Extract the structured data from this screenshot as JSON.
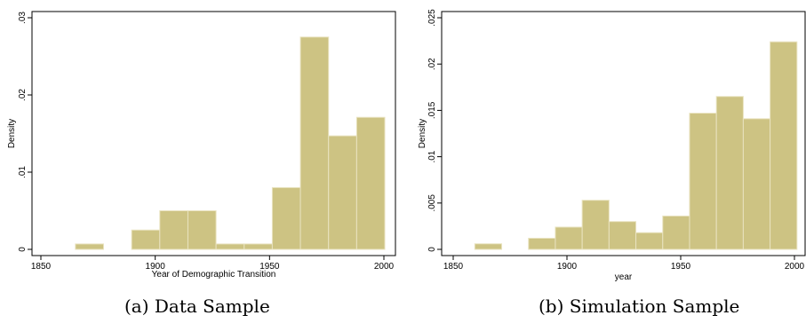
{
  "captions": {
    "left": "(a)  Data Sample",
    "right": "(b)  Simulation Sample"
  },
  "colors": {
    "bar_fill": "#cdc383",
    "bar_stroke": "#e9e3c0",
    "axis": "#000000",
    "background": "#ffffff"
  },
  "chart_data": [
    {
      "type": "bar",
      "subtype": "histogram",
      "xlabel": "Year of Demographic Transition",
      "ylabel": "Density",
      "xlim": [
        1850,
        2000
      ],
      "ylim": [
        0,
        0.03
      ],
      "xticks": [
        "1850",
        "1900",
        "1950",
        "2000"
      ],
      "yticks": [
        "0",
        ".01",
        ".02",
        ".03"
      ],
      "bin_width": 12.3,
      "bins": [
        {
          "x0": 1865.1,
          "density": 0.0007
        },
        {
          "x0": 1889.7,
          "density": 0.0025
        },
        {
          "x0": 1902.0,
          "density": 0.005
        },
        {
          "x0": 1914.3,
          "density": 0.005
        },
        {
          "x0": 1926.6,
          "density": 0.0007
        },
        {
          "x0": 1938.9,
          "density": 0.0007
        },
        {
          "x0": 1951.2,
          "density": 0.008
        },
        {
          "x0": 1963.5,
          "density": 0.0275
        },
        {
          "x0": 1975.8,
          "density": 0.0147
        },
        {
          "x0": 1988.1,
          "density": 0.0171
        }
      ],
      "grid": false,
      "legend": "none"
    },
    {
      "type": "bar",
      "subtype": "histogram",
      "xlabel": "year",
      "ylabel": "Density",
      "xlim": [
        1850,
        2000
      ],
      "ylim": [
        0,
        0.025
      ],
      "xticks": [
        "1850",
        "1900",
        "1950",
        "2000"
      ],
      "yticks": [
        "0",
        ".005",
        ".01",
        ".015",
        ".02",
        ".025"
      ],
      "bin_width": 11.8,
      "bins": [
        {
          "x0": 1859.5,
          "density": 0.0006
        },
        {
          "x0": 1883.1,
          "density": 0.0012
        },
        {
          "x0": 1894.9,
          "density": 0.0024
        },
        {
          "x0": 1906.7,
          "density": 0.0053
        },
        {
          "x0": 1918.5,
          "density": 0.003
        },
        {
          "x0": 1930.3,
          "density": 0.0018
        },
        {
          "x0": 1942.1,
          "density": 0.0036
        },
        {
          "x0": 1953.9,
          "density": 0.0147
        },
        {
          "x0": 1965.7,
          "density": 0.0165
        },
        {
          "x0": 1977.5,
          "density": 0.0141
        },
        {
          "x0": 1989.3,
          "density": 0.0224
        }
      ],
      "grid": false,
      "legend": "none"
    }
  ]
}
